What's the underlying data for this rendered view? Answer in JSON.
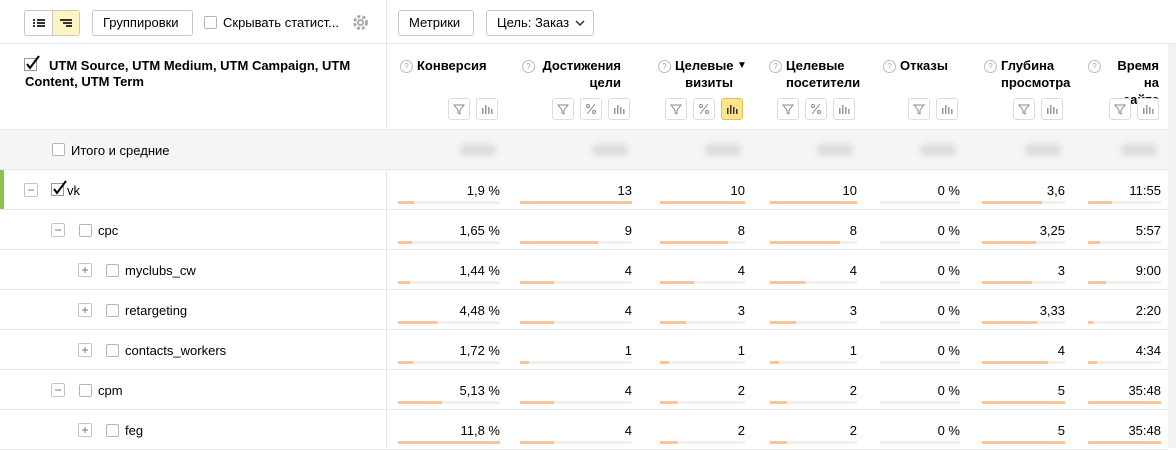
{
  "toolbar": {
    "grouping_button": "Группировки",
    "hide_stats_checkbox": "Скрывать статист...",
    "metrics_button": "Метрики",
    "goal_select": "Цель: Заказ"
  },
  "header": {
    "dimension": "UTM Source, UTM Medium, UTM Campaign, UTM Content, UTM Term",
    "columns": [
      "Конверсия",
      "Достижения цели",
      "Целевые визиты",
      "Целевые посетители",
      "Отказы",
      "Глубина просмотра",
      "Время на сайте"
    ]
  },
  "totals": {
    "label": "Итого и средние"
  },
  "rows": [
    {
      "label": "vk",
      "values": [
        "1,9 %",
        "13",
        "10",
        "10",
        "0 %",
        "3,6",
        "11:55"
      ],
      "children": [
        {
          "label": "cpc",
          "values": [
            "1,65 %",
            "9",
            "8",
            "8",
            "0 %",
            "3,25",
            "5:57"
          ],
          "children": [
            {
              "label": "myclubs_cw",
              "values": [
                "1,44 %",
                "4",
                "4",
                "4",
                "0 %",
                "3",
                "9:00"
              ]
            },
            {
              "label": "retargeting",
              "values": [
                "4,48 %",
                "4",
                "3",
                "3",
                "0 %",
                "3,33",
                "2:20"
              ]
            },
            {
              "label": "contacts_workers",
              "values": [
                "1,72 %",
                "1",
                "1",
                "1",
                "0 %",
                "4",
                "4:34"
              ]
            }
          ]
        },
        {
          "label": "cpm",
          "values": [
            "5,13 %",
            "4",
            "2",
            "2",
            "0 %",
            "5",
            "35:48"
          ],
          "children": [
            {
              "label": "feg",
              "values": [
                "11,8 %",
                "4",
                "2",
                "2",
                "0 %",
                "5",
                "35:48"
              ]
            }
          ]
        }
      ]
    }
  ]
}
